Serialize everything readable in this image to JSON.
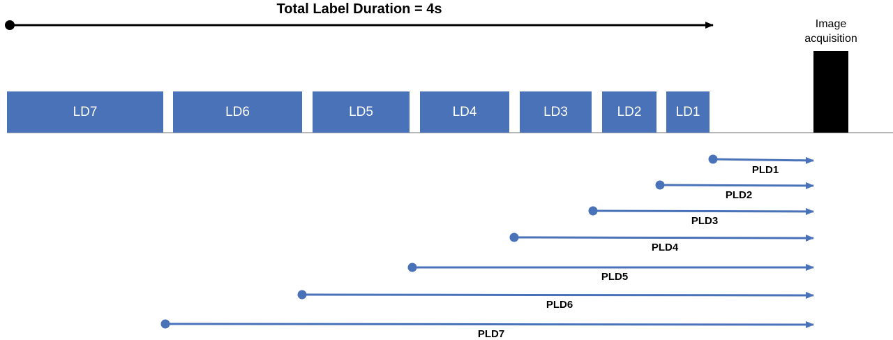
{
  "title": "Total Label Duration = 4s",
  "image_acquisition": {
    "line1": "Image",
    "line2": "acquisition"
  },
  "label_durations": [
    {
      "id": "LD7",
      "label": "LD7"
    },
    {
      "id": "LD6",
      "label": "LD6"
    },
    {
      "id": "LD5",
      "label": "LD5"
    },
    {
      "id": "LD4",
      "label": "LD4"
    },
    {
      "id": "LD3",
      "label": "LD3"
    },
    {
      "id": "LD2",
      "label": "LD2"
    },
    {
      "id": "LD1",
      "label": "LD1"
    }
  ],
  "post_label_delays": [
    {
      "id": "PLD1",
      "label": "PLD1"
    },
    {
      "id": "PLD2",
      "label": "PLD2"
    },
    {
      "id": "PLD3",
      "label": "PLD3"
    },
    {
      "id": "PLD4",
      "label": "PLD4"
    },
    {
      "id": "PLD5",
      "label": "PLD5"
    },
    {
      "id": "PLD6",
      "label": "PLD6"
    },
    {
      "id": "PLD7",
      "label": "PLD7"
    }
  ],
  "colors": {
    "block_fill": "#4a72b8",
    "arrow": "#4a72b8",
    "acquisition_bar": "#000000",
    "timeline": "#000000"
  }
}
